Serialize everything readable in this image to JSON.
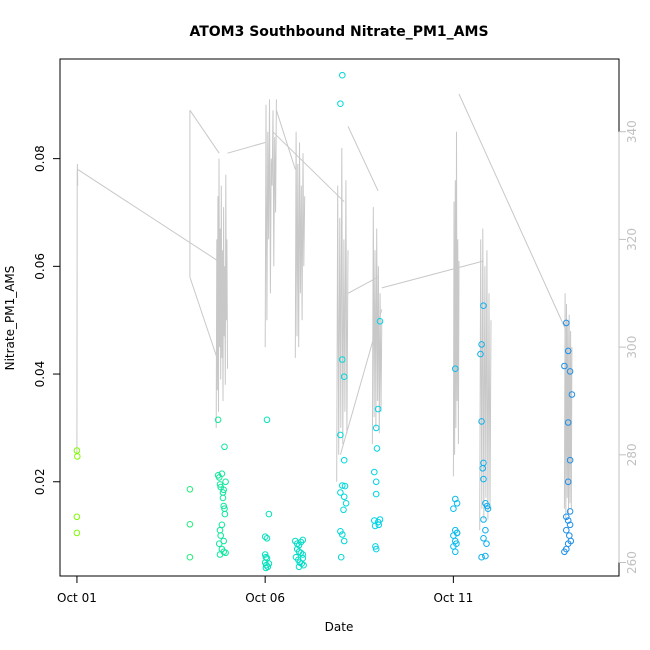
{
  "chart_data": {
    "type": "scatter",
    "title": "ATOM3 Southbound Nitrate_PM1_AMS",
    "xlabel": "Date",
    "ylabel": "Nitrate_PM1_AMS",
    "x_ticks": [
      {
        "day": 1,
        "label": "Oct 01"
      },
      {
        "day": 6,
        "label": "Oct 06"
      },
      {
        "day": 11,
        "label": "Oct 11"
      }
    ],
    "x_axis_unit": "day of October",
    "xlim": [
      0.55,
      15.4
    ],
    "ylim": [
      0.0025,
      0.0985
    ],
    "y_ticks": [
      0.02,
      0.04,
      0.06,
      0.08
    ],
    "y2lim": [
      257.5,
      353.5
    ],
    "y2_ticks": [
      260,
      280,
      300,
      320,
      340
    ],
    "grid": false,
    "colors": {
      "scatter_start": "#7cfc00",
      "scatter_mid": "#00e5b0",
      "scatter_late": "#00d0f0",
      "scatter_end": "#1e8fe8",
      "overlay_line": "#c8c8c8",
      "axis": "#000000",
      "right_axis": "#c0c0c0"
    },
    "series": [
      {
        "type": "scatter",
        "points": [
          [
            1.0,
            0.0258
          ],
          [
            1.01,
            0.0247
          ],
          [
            1.0,
            0.0135
          ],
          [
            1.0,
            0.0105
          ],
          [
            4.0,
            0.0186
          ],
          [
            4.0,
            0.0121
          ],
          [
            4.0,
            0.006
          ],
          [
            4.75,
            0.0315
          ],
          [
            4.75,
            0.0212
          ],
          [
            4.78,
            0.0208
          ],
          [
            4.8,
            0.0195
          ],
          [
            4.85,
            0.0215
          ],
          [
            4.82,
            0.019
          ],
          [
            4.9,
            0.0185
          ],
          [
            4.88,
            0.017
          ],
          [
            4.9,
            0.0155
          ],
          [
            4.92,
            0.015
          ],
          [
            4.85,
            0.012
          ],
          [
            4.8,
            0.011
          ],
          [
            4.82,
            0.01
          ],
          [
            4.9,
            0.009
          ],
          [
            4.78,
            0.0085
          ],
          [
            4.85,
            0.0075
          ],
          [
            4.9,
            0.007
          ],
          [
            4.8,
            0.0065
          ],
          [
            4.95,
            0.0068
          ],
          [
            4.92,
            0.0265
          ],
          [
            4.95,
            0.02
          ],
          [
            4.88,
            0.018
          ],
          [
            4.93,
            0.014
          ],
          [
            6.05,
            0.0315
          ],
          [
            6.1,
            0.014
          ],
          [
            6.0,
            0.0098
          ],
          [
            6.05,
            0.0095
          ],
          [
            6.0,
            0.0065
          ],
          [
            6.02,
            0.006
          ],
          [
            6.05,
            0.0058
          ],
          [
            6.0,
            0.005
          ],
          [
            6.03,
            0.0045
          ],
          [
            6.07,
            0.0042
          ],
          [
            6.1,
            0.0048
          ],
          [
            6.02,
            0.004
          ],
          [
            6.8,
            0.009
          ],
          [
            6.85,
            0.0085
          ],
          [
            6.9,
            0.0082
          ],
          [
            6.95,
            0.0088
          ],
          [
            7.0,
            0.0092
          ],
          [
            6.85,
            0.0075
          ],
          [
            6.9,
            0.007
          ],
          [
            6.95,
            0.0068
          ],
          [
            7.0,
            0.0065
          ],
          [
            6.82,
            0.006
          ],
          [
            6.88,
            0.0055
          ],
          [
            6.92,
            0.005
          ],
          [
            6.97,
            0.0048
          ],
          [
            7.02,
            0.0045
          ],
          [
            6.9,
            0.0042
          ],
          [
            7.0,
            0.0058
          ],
          [
            8.05,
            0.0955
          ],
          [
            8.0,
            0.0902
          ],
          [
            8.05,
            0.0427
          ],
          [
            8.1,
            0.0395
          ],
          [
            8.0,
            0.0287
          ],
          [
            8.1,
            0.024
          ],
          [
            8.05,
            0.0193
          ],
          [
            8.12,
            0.0192
          ],
          [
            8.0,
            0.018
          ],
          [
            8.1,
            0.0172
          ],
          [
            8.15,
            0.016
          ],
          [
            8.08,
            0.0148
          ],
          [
            8.0,
            0.0108
          ],
          [
            8.05,
            0.0102
          ],
          [
            8.1,
            0.009
          ],
          [
            8.02,
            0.006
          ],
          [
            9.05,
            0.0498
          ],
          [
            9.0,
            0.0335
          ],
          [
            8.95,
            0.03
          ],
          [
            8.97,
            0.0262
          ],
          [
            8.9,
            0.0218
          ],
          [
            8.95,
            0.02
          ],
          [
            8.95,
            0.0177
          ],
          [
            8.9,
            0.0128
          ],
          [
            9.0,
            0.0125
          ],
          [
            8.92,
            0.0118
          ],
          [
            9.05,
            0.013
          ],
          [
            9.02,
            0.012
          ],
          [
            8.93,
            0.008
          ],
          [
            8.95,
            0.0075
          ],
          [
            11.05,
            0.041
          ],
          [
            11.05,
            0.0168
          ],
          [
            11.1,
            0.016
          ],
          [
            11.0,
            0.015
          ],
          [
            11.05,
            0.011
          ],
          [
            11.1,
            0.0105
          ],
          [
            11.05,
            0.009
          ],
          [
            11.08,
            0.0085
          ],
          [
            11.0,
            0.008
          ],
          [
            11.05,
            0.007
          ],
          [
            11.1,
            0.0105
          ],
          [
            11.0,
            0.01
          ],
          [
            11.8,
            0.0527
          ],
          [
            11.75,
            0.0455
          ],
          [
            11.72,
            0.0437
          ],
          [
            11.75,
            0.0312
          ],
          [
            11.8,
            0.0235
          ],
          [
            11.78,
            0.0225
          ],
          [
            11.8,
            0.0205
          ],
          [
            11.85,
            0.016
          ],
          [
            11.9,
            0.0155
          ],
          [
            11.92,
            0.015
          ],
          [
            11.8,
            0.013
          ],
          [
            11.85,
            0.011
          ],
          [
            11.8,
            0.0095
          ],
          [
            11.88,
            0.0085
          ],
          [
            11.75,
            0.006
          ],
          [
            11.85,
            0.0062
          ],
          [
            14.0,
            0.0495
          ],
          [
            14.05,
            0.0443
          ],
          [
            13.95,
            0.0415
          ],
          [
            14.1,
            0.0405
          ],
          [
            14.15,
            0.0362
          ],
          [
            14.05,
            0.031
          ],
          [
            14.1,
            0.024
          ],
          [
            14.05,
            0.02
          ],
          [
            14.1,
            0.0145
          ],
          [
            14.0,
            0.0135
          ],
          [
            14.05,
            0.0128
          ],
          [
            14.1,
            0.012
          ],
          [
            14.0,
            0.011
          ],
          [
            14.08,
            0.01
          ],
          [
            14.12,
            0.009
          ],
          [
            14.05,
            0.0085
          ],
          [
            14.0,
            0.0075
          ],
          [
            13.95,
            0.007
          ]
        ]
      },
      {
        "type": "line",
        "axis": "right",
        "legs": [
          {
            "day_start": 1.0,
            "day_end": 1.02,
            "values": [
              280,
              332,
              334,
              330
            ]
          },
          {
            "day_start": 1.02,
            "day_end": 4.75,
            "values": [
              333,
              316
            ]
          },
          {
            "day_start": 4.0,
            "day_end": 4.0,
            "values": [
              313,
              344
            ]
          },
          {
            "day_start": 4.0,
            "day_end": 4.72,
            "values": [
              313,
              298
            ]
          },
          {
            "day_start": 4.0,
            "day_end": 4.78,
            "values": [
              344,
              336
            ]
          },
          {
            "day_start": 4.7,
            "day_end": 5.0,
            "values": [
              285,
              320,
              292,
              328,
              288,
              335,
              300,
              322,
              294,
              330,
              298,
              318,
              290,
              326,
              302,
              315,
              293,
              332,
              305,
              320,
              296
            ]
          },
          {
            "day_start": 5.0,
            "day_end": 6.0,
            "values": [
              336,
              338
            ]
          },
          {
            "day_start": 6.0,
            "day_end": 6.3,
            "values": [
              300,
              345,
              305,
              340,
              320,
              346,
              310,
              335,
              330,
              344,
              315,
              339,
              325,
              346
            ]
          },
          {
            "day_start": 6.3,
            "day_end": 6.8,
            "values": [
              344,
              333
            ]
          },
          {
            "day_start": 6.8,
            "day_end": 7.05,
            "values": [
              298,
              340,
              302,
              334,
              300,
              338,
              310,
              330,
              305,
              336,
              315,
              328
            ]
          },
          {
            "day_start": 6.2,
            "day_end": 8.1,
            "values": [
              340,
              327
            ]
          },
          {
            "day_start": 7.9,
            "day_end": 8.2,
            "values": [
              275,
              330,
              280,
              324,
              285,
              337,
              282,
              320,
              288,
              331,
              284,
              318
            ]
          },
          {
            "day_start": 8.2,
            "day_end": 9.0,
            "values": [
              310,
              313
            ]
          },
          {
            "day_start": 8.0,
            "day_end": 9.1,
            "values": [
              280,
              307
            ]
          },
          {
            "day_start": 8.85,
            "day_end": 9.1,
            "values": [
              282,
              326,
              287,
              318,
              285,
              322,
              290,
              315,
              284,
              310,
              288,
              305
            ]
          },
          {
            "day_start": 8.2,
            "day_end": 9.0,
            "values": [
              341,
              329
            ]
          },
          {
            "day_start": 9.1,
            "day_end": 11.8,
            "values": [
              311,
              316
            ]
          },
          {
            "day_start": 11.0,
            "day_end": 11.15,
            "values": [
              276,
              327,
              280,
              331,
              285,
              340,
              290,
              320,
              282,
              316
            ]
          },
          {
            "day_start": 11.15,
            "day_end": 14.0,
            "values": [
              347,
              303
            ]
          },
          {
            "day_start": 11.7,
            "day_end": 12.0,
            "values": [
              266,
              320,
              270,
              322,
              268,
              315,
              272,
              318,
              268,
              310,
              270,
              305
            ]
          },
          {
            "day_start": 13.95,
            "day_end": 14.15,
            "values": [
              270,
              310,
              268,
              308,
              272,
              305,
              269,
              306,
              271,
              303,
              270,
              300
            ]
          }
        ]
      }
    ]
  }
}
